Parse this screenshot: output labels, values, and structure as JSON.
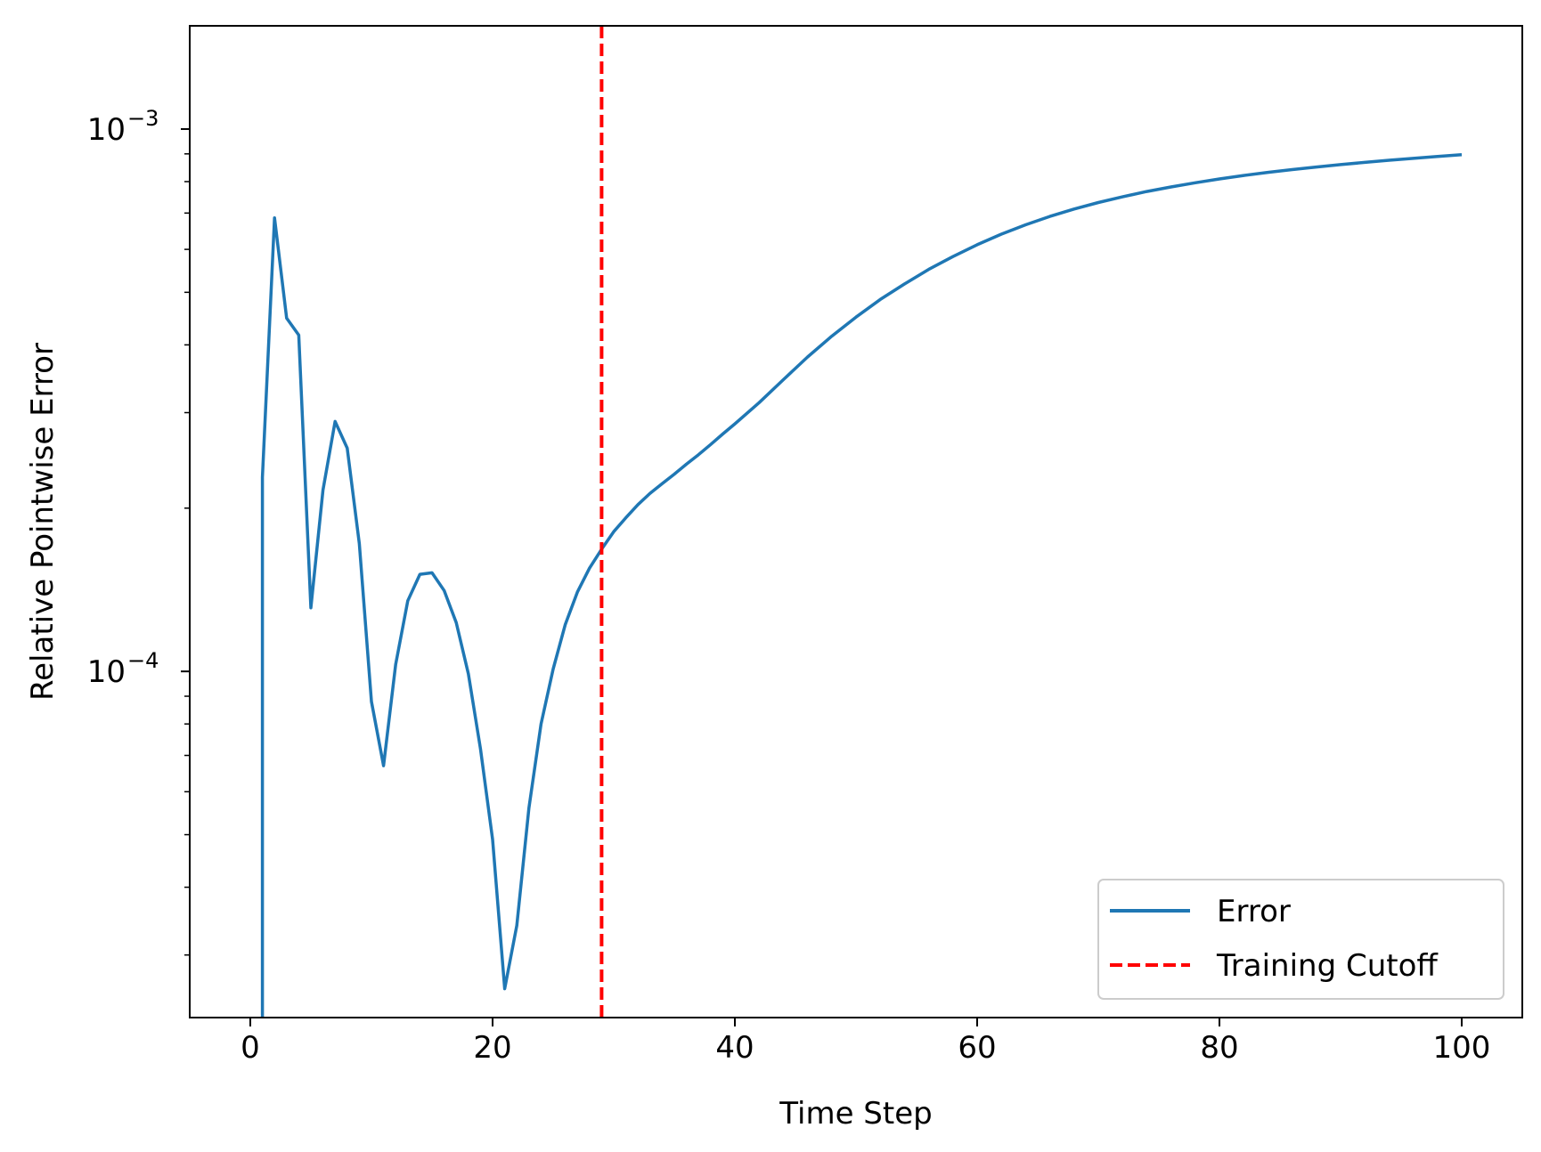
{
  "chart_data": {
    "type": "line",
    "xlabel": "Time Step",
    "ylabel": "Relative Pointwise Error",
    "xlim": [
      -5,
      105
    ],
    "ylim": [
      2.3e-05,
      0.00155
    ],
    "yscale": "log",
    "grid": false,
    "legend_position": "lower-right",
    "x_ticks": [
      0,
      20,
      40,
      60,
      80,
      100
    ],
    "x_tick_labels": [
      "0",
      "20",
      "40",
      "60",
      "80",
      "100"
    ],
    "y_ticks": [
      {
        "value": 0.0001,
        "base": "10",
        "exponent": "−4"
      },
      {
        "value": 0.001,
        "base": "10",
        "exponent": "−3"
      }
    ],
    "series": [
      {
        "name": "Error",
        "color": "#1f77b4",
        "style": "solid",
        "x": [
          1,
          1,
          2,
          3,
          4,
          5,
          6,
          7,
          8,
          9,
          10,
          11,
          12,
          13,
          14,
          15,
          16,
          17,
          18,
          19,
          20,
          21,
          22,
          23,
          24,
          25,
          26,
          27,
          28,
          29,
          30,
          31,
          32,
          33,
          34,
          35,
          36,
          37,
          38,
          39,
          40,
          42,
          44,
          46,
          48,
          50,
          52,
          54,
          56,
          58,
          60,
          62,
          64,
          66,
          68,
          70,
          72,
          74,
          76,
          78,
          80,
          82,
          84,
          86,
          88,
          90,
          92,
          94,
          96,
          98,
          100
        ],
        "y": [
          2.3e-05,
          0.000228,
          0.000686,
          0.000448,
          0.000417,
          0.000131,
          0.000216,
          0.000289,
          0.000258,
          0.000172,
          8.8e-05,
          6.7e-05,
          0.000103,
          0.000135,
          0.000151,
          0.000152,
          0.000141,
          0.000123,
          9.9e-05,
          7.2e-05,
          4.9e-05,
          2.6e-05,
          3.4e-05,
          5.6e-05,
          8e-05,
          0.000101,
          0.000122,
          0.00014,
          0.000155,
          0.000168,
          0.000181,
          0.000192,
          0.000203,
          0.000213,
          0.000222,
          0.000231,
          0.000241,
          0.000251,
          0.000262,
          0.000274,
          0.000286,
          0.000313,
          0.000345,
          0.00038,
          0.000415,
          0.00045,
          0.000485,
          0.000518,
          0.000551,
          0.000582,
          0.000612,
          0.00064,
          0.000666,
          0.00069,
          0.000712,
          0.000732,
          0.00075,
          0.000767,
          0.000782,
          0.000796,
          0.000809,
          0.000821,
          0.000832,
          0.000842,
          0.000851,
          0.00086,
          0.000868,
          0.000876,
          0.000883,
          0.00089,
          0.000897
        ]
      }
    ],
    "vlines": [
      {
        "name": "Training Cutoff",
        "x": 29,
        "color": "#ff0000",
        "style": "dashed"
      }
    ],
    "legend": [
      {
        "label": "Error",
        "color": "#1f77b4",
        "style": "solid"
      },
      {
        "label": "Training Cutoff",
        "color": "#ff0000",
        "style": "dashed"
      }
    ]
  }
}
